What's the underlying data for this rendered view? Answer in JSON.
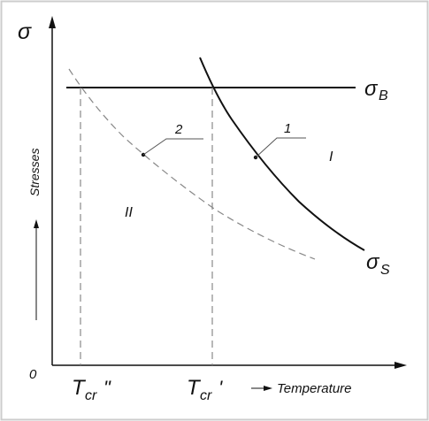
{
  "labels": {
    "sigma": "σ",
    "sigma_b": "σ",
    "sigma_b_sub": "B",
    "sigma_s": "σ",
    "sigma_s_sub": "S",
    "origin": "0",
    "y_axis": "Stresses",
    "x_axis": "Temperature",
    "tcr_dbl_main": "T",
    "tcr_dbl_sub": "cr",
    "tcr_dbl_mark": "\"",
    "tcr_sgl_main": "T",
    "tcr_sgl_sub": "cr",
    "tcr_sgl_mark": "'",
    "curve1": "1",
    "curve2": "2",
    "region1": "I",
    "region2": "II"
  },
  "colors": {
    "ink": "#111111",
    "dashed": "#888888",
    "frame": "#cccccc",
    "background": "#ffffff"
  }
}
